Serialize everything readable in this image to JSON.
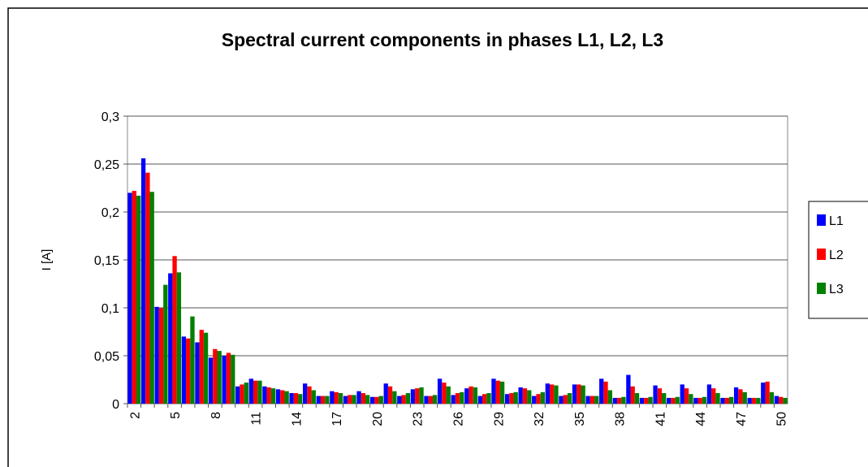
{
  "chart_data": {
    "type": "bar",
    "title": "Spectral current components in phases L1, L2, L3",
    "y_label": "I [A]",
    "categories": [
      2,
      null,
      null,
      5,
      null,
      null,
      8,
      null,
      null,
      11,
      null,
      null,
      14,
      null,
      null,
      17,
      null,
      null,
      20,
      null,
      null,
      23,
      null,
      null,
      26,
      null,
      null,
      29,
      null,
      null,
      32,
      null,
      null,
      35,
      null,
      null,
      38,
      null,
      null,
      41,
      null,
      null,
      44,
      null,
      null,
      47,
      null,
      null,
      50
    ],
    "series": [
      {
        "name": "L1",
        "color": "#0000ff",
        "values": [
          0.22,
          0.256,
          0.101,
          0.136,
          0.07,
          0.064,
          0.048,
          0.05,
          0.018,
          0.026,
          0.018,
          0.015,
          0.011,
          0.021,
          0.008,
          0.013,
          0.008,
          0.013,
          0.007,
          0.021,
          0.008,
          0.015,
          0.008,
          0.026,
          0.009,
          0.016,
          0.008,
          0.026,
          0.01,
          0.017,
          0.008,
          0.021,
          0.008,
          0.02,
          0.008,
          0.026,
          0.006,
          0.03,
          0.006,
          0.019,
          0.006,
          0.02,
          0.006,
          0.02,
          0.006,
          0.017,
          0.006,
          0.022,
          0.008
        ]
      },
      {
        "name": "L2",
        "color": "#ff0000",
        "values": [
          0.222,
          0.241,
          0.1,
          0.154,
          0.068,
          0.077,
          0.057,
          0.053,
          0.02,
          0.024,
          0.017,
          0.014,
          0.011,
          0.018,
          0.008,
          0.012,
          0.009,
          0.011,
          0.007,
          0.018,
          0.009,
          0.016,
          0.008,
          0.022,
          0.011,
          0.018,
          0.01,
          0.024,
          0.011,
          0.016,
          0.01,
          0.02,
          0.009,
          0.02,
          0.008,
          0.023,
          0.006,
          0.018,
          0.006,
          0.016,
          0.006,
          0.016,
          0.006,
          0.016,
          0.006,
          0.015,
          0.006,
          0.023,
          0.007
        ]
      },
      {
        "name": "L3",
        "color": "#008000",
        "values": [
          0.217,
          0.221,
          0.124,
          0.137,
          0.091,
          0.074,
          0.055,
          0.051,
          0.022,
          0.024,
          0.016,
          0.013,
          0.01,
          0.014,
          0.008,
          0.011,
          0.009,
          0.009,
          0.008,
          0.013,
          0.011,
          0.017,
          0.009,
          0.018,
          0.012,
          0.017,
          0.011,
          0.023,
          0.012,
          0.014,
          0.012,
          0.019,
          0.011,
          0.019,
          0.008,
          0.014,
          0.007,
          0.011,
          0.007,
          0.011,
          0.007,
          0.01,
          0.007,
          0.011,
          0.007,
          0.012,
          0.006,
          0.012,
          0.006
        ]
      }
    ],
    "ylim": [
      0,
      0.3
    ],
    "yticks": [
      0,
      {
        "value": 0.05,
        "label": "0,05"
      },
      {
        "value": 0.1,
        "label": "0,1"
      },
      {
        "value": 0.15,
        "label": "0,15"
      },
      {
        "value": 0.2,
        "label": "0,2"
      },
      {
        "value": 0.25,
        "label": "0,25"
      },
      {
        "value": 0.3,
        "label": "0,3"
      }
    ],
    "grid": true,
    "legend": "right"
  }
}
